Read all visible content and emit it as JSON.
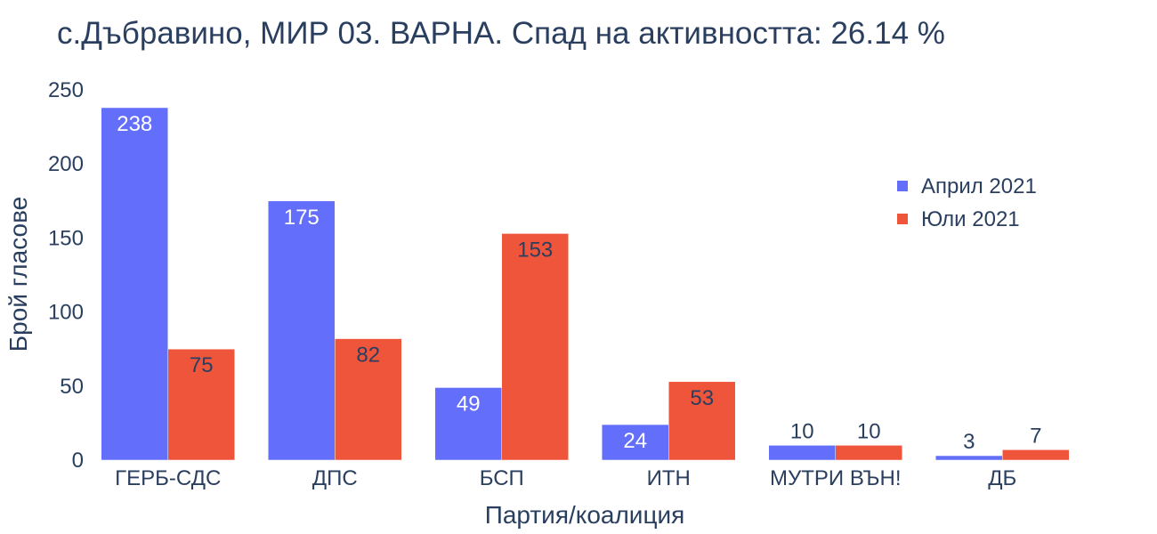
{
  "chart_data": {
    "type": "bar",
    "title": "с.Дъбравино, МИР 03. ВАРНА. Спад на активността: 26.14 %",
    "xlabel": "Партия/коалиция",
    "ylabel": "Брой гласове",
    "categories": [
      "ГЕРБ-СДС",
      "ДПС",
      "БСП",
      "ИТН",
      "МУТРИ ВЪН!",
      "ДБ"
    ],
    "series": [
      {
        "name": "Април 2021",
        "values": [
          238,
          175,
          49,
          24,
          10,
          3
        ],
        "color": "#636efa"
      },
      {
        "name": "Юли 2021",
        "values": [
          75,
          82,
          153,
          53,
          10,
          7
        ],
        "color": "#ef553b"
      }
    ],
    "ylim": [
      0,
      250
    ],
    "yticks": [
      0,
      50,
      100,
      150,
      200,
      250
    ],
    "grid": false,
    "legend_position": "top-right"
  }
}
